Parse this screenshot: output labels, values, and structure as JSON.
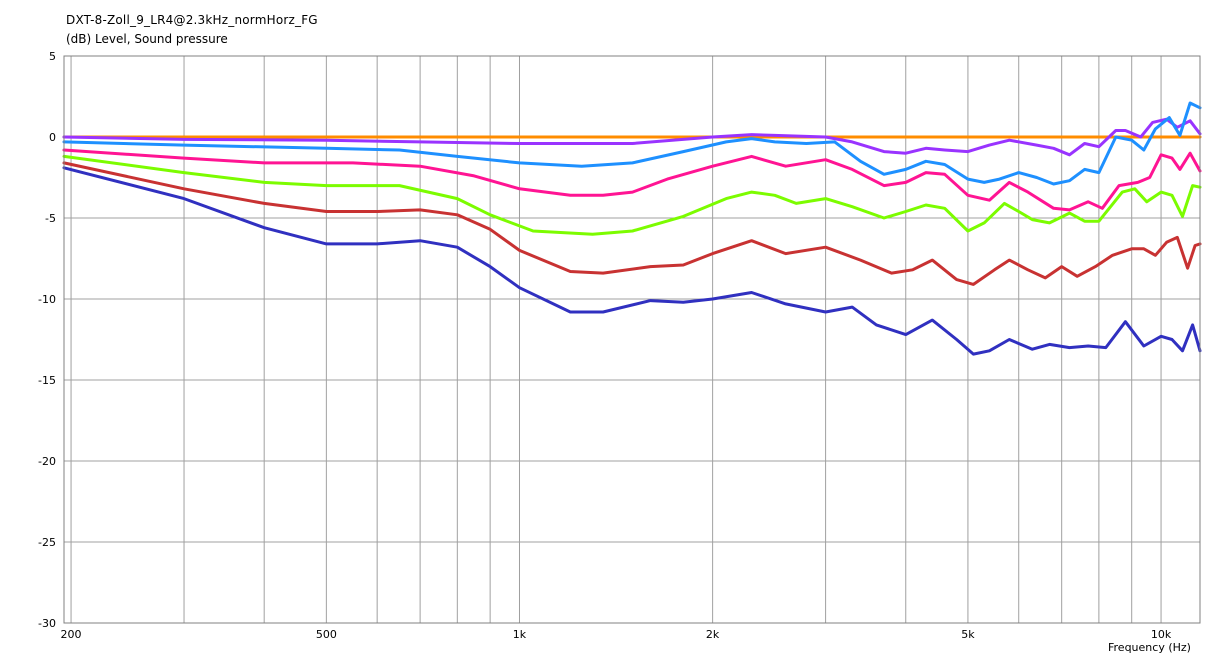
{
  "chart_data": {
    "type": "line",
    "title": "DXT-8-Zoll_9_LR4@2.3kHz_normHorz_FG",
    "ylabel": "(dB)  Level, Sound pressure",
    "xlabel": "Frequency  (Hz)",
    "xscale": "log",
    "xlim": [
      195,
      11500
    ],
    "ylim": [
      -30,
      5
    ],
    "grid": true,
    "x_tick_labels": [
      {
        "v": 200,
        "label": "200"
      },
      {
        "v": 500,
        "label": "500"
      },
      {
        "v": 1000,
        "label": "1k"
      },
      {
        "v": 2000,
        "label": "2k"
      },
      {
        "v": 5000,
        "label": "5k"
      },
      {
        "v": 10000,
        "label": "10k"
      }
    ],
    "y_ticks": [
      5,
      0,
      -5,
      -10,
      -15,
      -20,
      -25,
      -30
    ],
    "series": [
      {
        "color": "#ff8c00",
        "points": [
          [
            195,
            0
          ],
          [
            11500,
            0
          ]
        ]
      },
      {
        "color": "#9933ff",
        "points": [
          [
            195,
            0
          ],
          [
            300,
            -0.15
          ],
          [
            500,
            -0.2
          ],
          [
            700,
            -0.3
          ],
          [
            1000,
            -0.4
          ],
          [
            1500,
            -0.4
          ],
          [
            2000,
            0
          ],
          [
            2300,
            0.15
          ],
          [
            2500,
            0.1
          ],
          [
            3000,
            0
          ],
          [
            3300,
            -0.3
          ],
          [
            3700,
            -0.9
          ],
          [
            4000,
            -1
          ],
          [
            4300,
            -0.7
          ],
          [
            4600,
            -0.8
          ],
          [
            5000,
            -0.9
          ],
          [
            5400,
            -0.5
          ],
          [
            5800,
            -0.2
          ],
          [
            6400,
            -0.5
          ],
          [
            6800,
            -0.7
          ],
          [
            7200,
            -1.1
          ],
          [
            7600,
            -0.4
          ],
          [
            8000,
            -0.6
          ],
          [
            8500,
            0.4
          ],
          [
            8800,
            0.4
          ],
          [
            9300,
            0
          ],
          [
            9700,
            0.9
          ],
          [
            10200,
            1.1
          ],
          [
            10600,
            0.6
          ],
          [
            11100,
            1
          ],
          [
            11500,
            0.2
          ]
        ]
      },
      {
        "color": "#1e90ff",
        "points": [
          [
            195,
            -0.3
          ],
          [
            300,
            -0.5
          ],
          [
            500,
            -0.7
          ],
          [
            650,
            -0.8
          ],
          [
            800,
            -1.2
          ],
          [
            1000,
            -1.6
          ],
          [
            1250,
            -1.8
          ],
          [
            1500,
            -1.6
          ],
          [
            1800,
            -0.9
          ],
          [
            2100,
            -0.3
          ],
          [
            2300,
            -0.1
          ],
          [
            2500,
            -0.3
          ],
          [
            2800,
            -0.4
          ],
          [
            3100,
            -0.3
          ],
          [
            3400,
            -1.5
          ],
          [
            3700,
            -2.3
          ],
          [
            4000,
            -2
          ],
          [
            4300,
            -1.5
          ],
          [
            4600,
            -1.7
          ],
          [
            5000,
            -2.6
          ],
          [
            5300,
            -2.8
          ],
          [
            5600,
            -2.6
          ],
          [
            6000,
            -2.2
          ],
          [
            6400,
            -2.5
          ],
          [
            6800,
            -2.9
          ],
          [
            7200,
            -2.7
          ],
          [
            7600,
            -2
          ],
          [
            8000,
            -2.2
          ],
          [
            8500,
            0
          ],
          [
            9000,
            -0.2
          ],
          [
            9400,
            -0.8
          ],
          [
            9800,
            0.5
          ],
          [
            10300,
            1.2
          ],
          [
            10700,
            0.1
          ],
          [
            11100,
            2.1
          ],
          [
            11500,
            1.8
          ]
        ]
      },
      {
        "color": "#ff1493",
        "points": [
          [
            195,
            -0.8
          ],
          [
            300,
            -1.3
          ],
          [
            400,
            -1.6
          ],
          [
            550,
            -1.6
          ],
          [
            700,
            -1.8
          ],
          [
            850,
            -2.4
          ],
          [
            1000,
            -3.2
          ],
          [
            1200,
            -3.6
          ],
          [
            1350,
            -3.6
          ],
          [
            1500,
            -3.4
          ],
          [
            1700,
            -2.6
          ],
          [
            2000,
            -1.8
          ],
          [
            2300,
            -1.2
          ],
          [
            2600,
            -1.8
          ],
          [
            3000,
            -1.4
          ],
          [
            3300,
            -2
          ],
          [
            3700,
            -3
          ],
          [
            4000,
            -2.8
          ],
          [
            4300,
            -2.2
          ],
          [
            4600,
            -2.3
          ],
          [
            5000,
            -3.6
          ],
          [
            5400,
            -3.9
          ],
          [
            5800,
            -2.8
          ],
          [
            6200,
            -3.4
          ],
          [
            6800,
            -4.4
          ],
          [
            7200,
            -4.5
          ],
          [
            7700,
            -4
          ],
          [
            8100,
            -4.4
          ],
          [
            8600,
            -3
          ],
          [
            9200,
            -2.8
          ],
          [
            9600,
            -2.5
          ],
          [
            10000,
            -1.1
          ],
          [
            10400,
            -1.3
          ],
          [
            10700,
            -2
          ],
          [
            11100,
            -1
          ],
          [
            11500,
            -2.1
          ]
        ]
      },
      {
        "color": "#7cfc00",
        "points": [
          [
            195,
            -1.2
          ],
          [
            300,
            -2.2
          ],
          [
            400,
            -2.8
          ],
          [
            500,
            -3
          ],
          [
            650,
            -3
          ],
          [
            800,
            -3.8
          ],
          [
            900,
            -4.8
          ],
          [
            1050,
            -5.8
          ],
          [
            1300,
            -6
          ],
          [
            1500,
            -5.8
          ],
          [
            1800,
            -4.9
          ],
          [
            2100,
            -3.8
          ],
          [
            2300,
            -3.4
          ],
          [
            2500,
            -3.6
          ],
          [
            2700,
            -4.1
          ],
          [
            3000,
            -3.8
          ],
          [
            3300,
            -4.3
          ],
          [
            3700,
            -5
          ],
          [
            4000,
            -4.6
          ],
          [
            4300,
            -4.2
          ],
          [
            4600,
            -4.4
          ],
          [
            5000,
            -5.8
          ],
          [
            5300,
            -5.3
          ],
          [
            5700,
            -4.1
          ],
          [
            6000,
            -4.6
          ],
          [
            6300,
            -5.1
          ],
          [
            6700,
            -5.3
          ],
          [
            7200,
            -4.7
          ],
          [
            7600,
            -5.2
          ],
          [
            8000,
            -5.2
          ],
          [
            8700,
            -3.4
          ],
          [
            9100,
            -3.2
          ],
          [
            9500,
            -4
          ],
          [
            10000,
            -3.4
          ],
          [
            10400,
            -3.6
          ],
          [
            10800,
            -4.9
          ],
          [
            11200,
            -3
          ],
          [
            11500,
            -3.1
          ]
        ]
      },
      {
        "color": "#c83232",
        "points": [
          [
            195,
            -1.6
          ],
          [
            300,
            -3.2
          ],
          [
            400,
            -4.1
          ],
          [
            500,
            -4.6
          ],
          [
            600,
            -4.6
          ],
          [
            700,
            -4.5
          ],
          [
            800,
            -4.8
          ],
          [
            900,
            -5.7
          ],
          [
            1000,
            -7
          ],
          [
            1200,
            -8.3
          ],
          [
            1350,
            -8.4
          ],
          [
            1600,
            -8
          ],
          [
            1800,
            -7.9
          ],
          [
            2000,
            -7.2
          ],
          [
            2300,
            -6.4
          ],
          [
            2600,
            -7.2
          ],
          [
            3000,
            -6.8
          ],
          [
            3400,
            -7.6
          ],
          [
            3800,
            -8.4
          ],
          [
            4100,
            -8.2
          ],
          [
            4400,
            -7.6
          ],
          [
            4800,
            -8.8
          ],
          [
            5100,
            -9.1
          ],
          [
            5500,
            -8.2
          ],
          [
            5800,
            -7.6
          ],
          [
            6200,
            -8.2
          ],
          [
            6600,
            -8.7
          ],
          [
            7000,
            -8
          ],
          [
            7400,
            -8.6
          ],
          [
            7900,
            -8
          ],
          [
            8400,
            -7.3
          ],
          [
            9000,
            -6.9
          ],
          [
            9400,
            -6.9
          ],
          [
            9800,
            -7.3
          ],
          [
            10200,
            -6.5
          ],
          [
            10600,
            -6.2
          ],
          [
            11000,
            -8.1
          ],
          [
            11300,
            -6.7
          ],
          [
            11500,
            -6.6
          ]
        ]
      },
      {
        "color": "#3030c0",
        "points": [
          [
            195,
            -1.9
          ],
          [
            300,
            -3.8
          ],
          [
            400,
            -5.6
          ],
          [
            500,
            -6.6
          ],
          [
            600,
            -6.6
          ],
          [
            700,
            -6.4
          ],
          [
            800,
            -6.8
          ],
          [
            900,
            -8
          ],
          [
            1000,
            -9.3
          ],
          [
            1200,
            -10.8
          ],
          [
            1350,
            -10.8
          ],
          [
            1600,
            -10.1
          ],
          [
            1800,
            -10.2
          ],
          [
            2000,
            -10
          ],
          [
            2300,
            -9.6
          ],
          [
            2600,
            -10.3
          ],
          [
            3000,
            -10.8
          ],
          [
            3300,
            -10.5
          ],
          [
            3600,
            -11.6
          ],
          [
            4000,
            -12.2
          ],
          [
            4400,
            -11.3
          ],
          [
            4800,
            -12.5
          ],
          [
            5100,
            -13.4
          ],
          [
            5400,
            -13.2
          ],
          [
            5800,
            -12.5
          ],
          [
            6300,
            -13.1
          ],
          [
            6700,
            -12.8
          ],
          [
            7200,
            -13
          ],
          [
            7700,
            -12.9
          ],
          [
            8200,
            -13
          ],
          [
            8800,
            -11.4
          ],
          [
            9400,
            -12.9
          ],
          [
            10000,
            -12.3
          ],
          [
            10400,
            -12.5
          ],
          [
            10800,
            -13.2
          ],
          [
            11200,
            -11.6
          ],
          [
            11500,
            -13.2
          ]
        ]
      }
    ]
  }
}
